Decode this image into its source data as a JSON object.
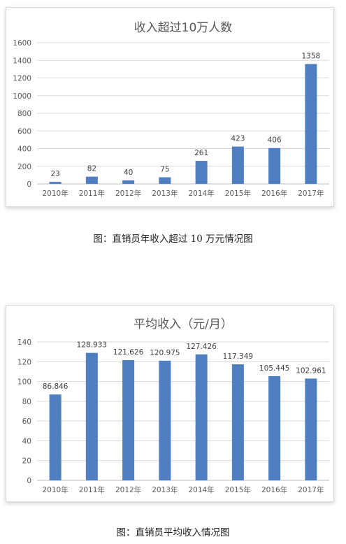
{
  "chart_data": [
    {
      "type": "bar",
      "title": "收入超过10万人数",
      "categories": [
        "2010年",
        "2011年",
        "2012年",
        "2013年",
        "2014年",
        "2015年",
        "2016年",
        "2017年"
      ],
      "values": [
        23,
        82,
        40,
        75,
        261,
        423,
        406,
        1358
      ],
      "data_labels": [
        "23",
        "82",
        "40",
        "75",
        "261",
        "423",
        "406",
        "1358"
      ],
      "ylim": [
        0,
        1600
      ],
      "yticks": [
        "0",
        "200",
        "400",
        "600",
        "800",
        "1000",
        "1200",
        "1400",
        "1600"
      ],
      "grid": true,
      "bar_color": "#4f7ec1"
    },
    {
      "type": "bar",
      "title": "平均收入（元/月）",
      "categories": [
        "2010年",
        "2011年",
        "2012年",
        "2013年",
        "2014年",
        "2015年",
        "2016年",
        "2017年"
      ],
      "values": [
        86.846,
        128.933,
        121.626,
        120.975,
        127.426,
        117.349,
        105.445,
        102.961
      ],
      "data_labels": [
        "86.846",
        "128.933",
        "121.626",
        "120.975",
        "127.426",
        "117.349",
        "105.445",
        "102.961"
      ],
      "ylim": [
        0,
        140
      ],
      "yticks": [
        "0",
        "20",
        "40",
        "60",
        "80",
        "100",
        "120",
        "140"
      ],
      "grid": true,
      "bar_color": "#4f7ec1"
    }
  ],
  "captions": {
    "chart1": "图：直销员年收入超过 10 万元情况图",
    "chart2": "图：直销员平均收入情况图"
  }
}
